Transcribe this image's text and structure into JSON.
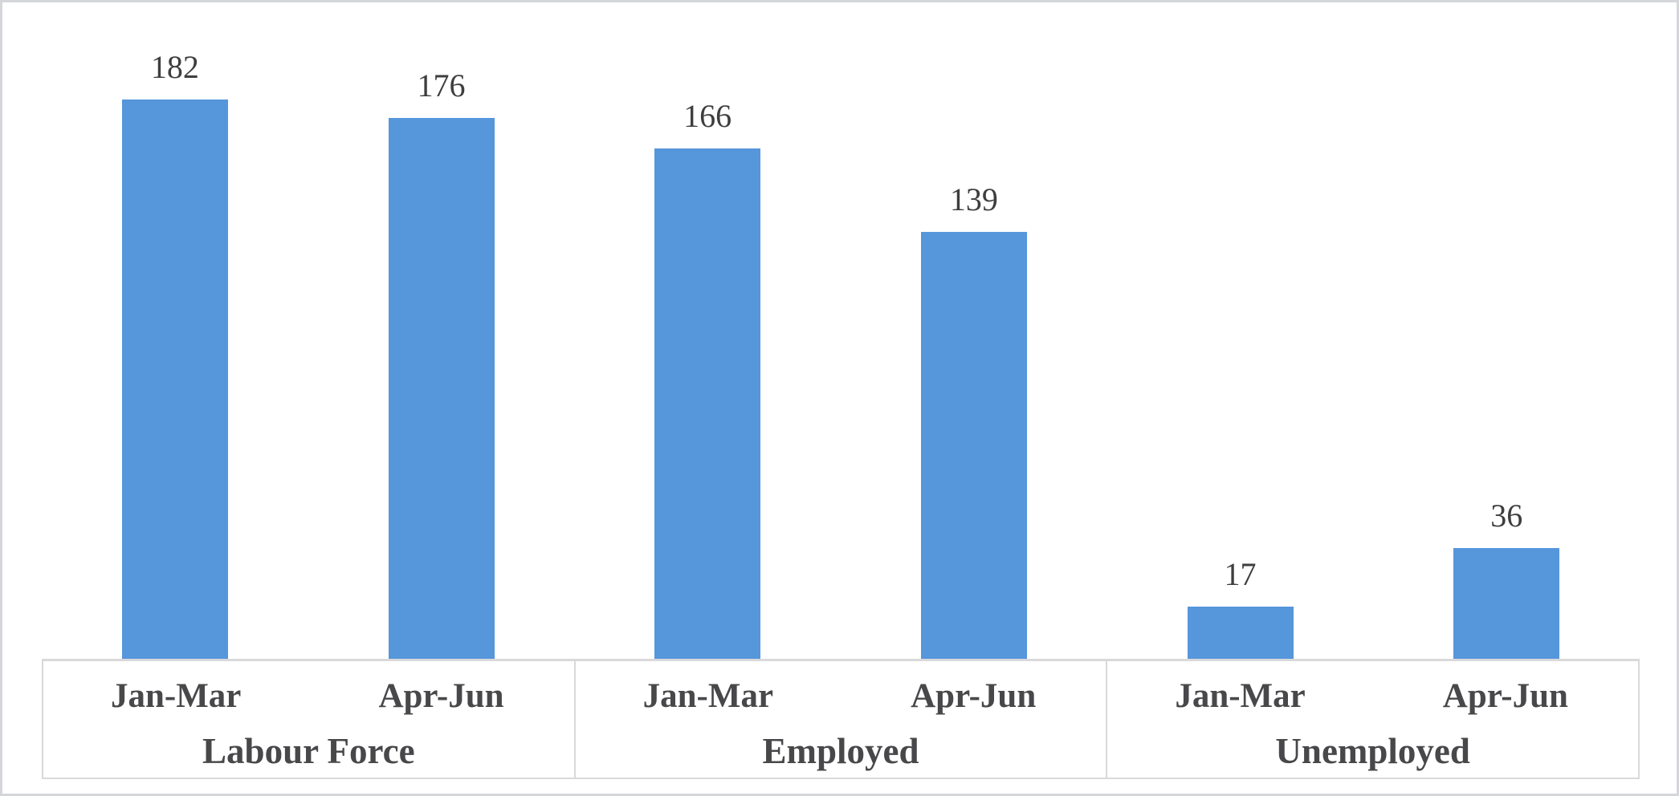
{
  "chart_data": {
    "type": "bar",
    "title": "",
    "xlabel": "",
    "ylabel": "",
    "ylim": [
      0,
      200
    ],
    "gridlines": false,
    "legend": "none",
    "data_labels": "above-bars",
    "axis_style": "multi-level-category-boxed",
    "groups": [
      {
        "label": "Labour Force",
        "bars": [
          {
            "category": "Jan-Mar",
            "value": 182
          },
          {
            "category": "Apr-Jun",
            "value": 176
          }
        ]
      },
      {
        "label": "Employed",
        "bars": [
          {
            "category": "Jan-Mar",
            "value": 166
          },
          {
            "category": "Apr-Jun",
            "value": 139
          }
        ]
      },
      {
        "label": "Unemployed",
        "bars": [
          {
            "category": "Jan-Mar",
            "value": 17
          },
          {
            "category": "Apr-Jun",
            "value": 36
          }
        ]
      }
    ],
    "colors": {
      "bar": "#5696DB",
      "value_label": "#3E3E40",
      "axis_label": "#48484B",
      "axis_line": "#D9D9DB",
      "frame_border": "#D5D6D9",
      "background": "#FFFFFF"
    }
  }
}
